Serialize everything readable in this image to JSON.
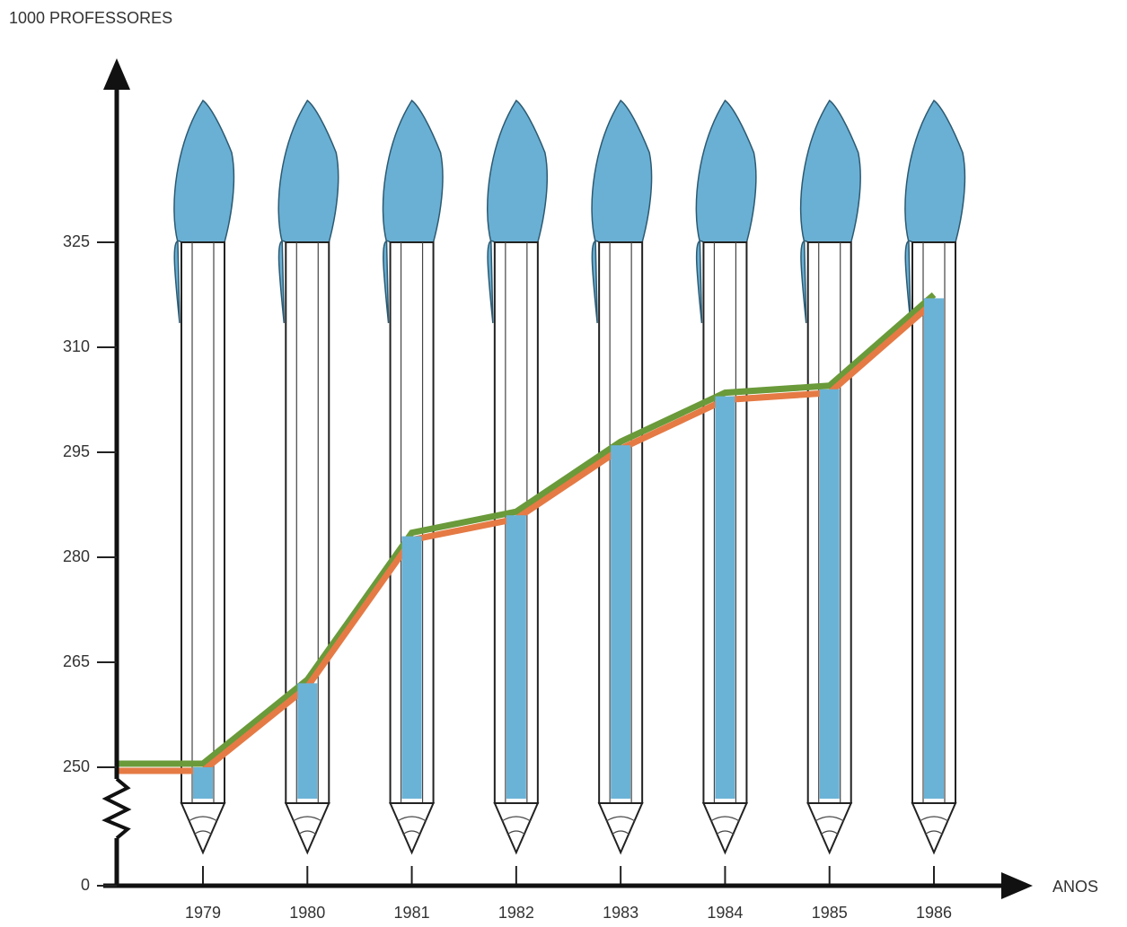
{
  "chart_data": {
    "type": "pictograph-bar",
    "y_label": "1000 PROFESSORES",
    "x_label": "ANOS",
    "categories": [
      "1979",
      "1980",
      "1981",
      "1982",
      "1983",
      "1984",
      "1985",
      "1986"
    ],
    "values": [
      250,
      262,
      283,
      286,
      296,
      303,
      304,
      317
    ],
    "color": "#6bb3d6",
    "ylim": [
      250,
      350
    ],
    "yticks": [
      0,
      250,
      265,
      280,
      295,
      310,
      325
    ],
    "axis_break": true
  }
}
